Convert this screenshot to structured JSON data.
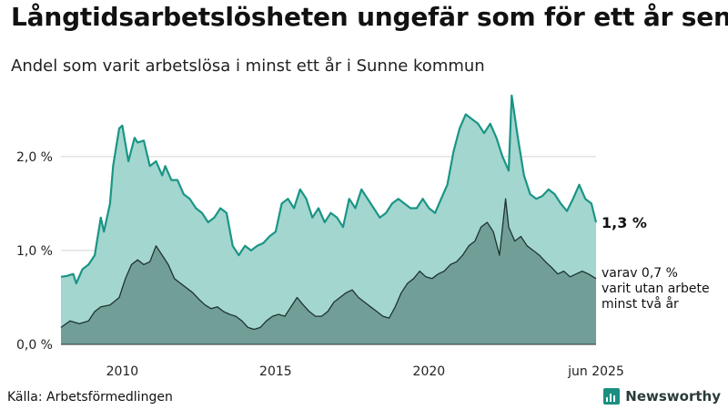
{
  "title": "Långtidsarbetslösheten ungefär som för ett år sen",
  "subtitle": "Andel som varit arbetslösa i minst ett år i Sunne kommun",
  "source": "Källa: Arbetsförmedlingen",
  "brand": "Newsworthy",
  "colors": {
    "total_fill": "#a3d6cf",
    "total_line": "#1a9585",
    "sub_fill": "#719f98",
    "sub_line": "#1f3330",
    "grid": "#d3d3d3",
    "brand_icon": "#1a8f80"
  },
  "chart_data": {
    "type": "area",
    "x_unit": "year (decimal)",
    "xlim": [
      2008.0,
      2025.45
    ],
    "ylim": [
      0,
      2.6
    ],
    "y_ticks": [
      0,
      1,
      2
    ],
    "y_tick_labels": [
      "0,0 %",
      "1,0 %",
      "2,0 %"
    ],
    "x_ticks": [
      2010,
      2015,
      2020,
      2025.45
    ],
    "x_tick_labels": [
      "2010",
      "2015",
      "2020",
      "jun 2025"
    ],
    "grid": true,
    "series": [
      {
        "key": "total",
        "end_label": "1,3 %",
        "x": [
          2008.0,
          2008.2,
          2008.4,
          2008.5,
          2008.7,
          2008.9,
          2009.1,
          2009.3,
          2009.4,
          2009.6,
          2009.7,
          2009.9,
          2010.0,
          2010.2,
          2010.4,
          2010.5,
          2010.7,
          2010.9,
          2011.1,
          2011.3,
          2011.4,
          2011.6,
          2011.8,
          2012.0,
          2012.2,
          2012.4,
          2012.6,
          2012.8,
          2013.0,
          2013.2,
          2013.4,
          2013.6,
          2013.8,
          2014.0,
          2014.2,
          2014.4,
          2014.6,
          2014.8,
          2015.0,
          2015.2,
          2015.4,
          2015.6,
          2015.8,
          2016.0,
          2016.2,
          2016.4,
          2016.6,
          2016.8,
          2017.0,
          2017.2,
          2017.4,
          2017.6,
          2017.8,
          2018.0,
          2018.2,
          2018.4,
          2018.6,
          2018.8,
          2019.0,
          2019.2,
          2019.4,
          2019.6,
          2019.8,
          2020.0,
          2020.2,
          2020.4,
          2020.6,
          2020.8,
          2021.0,
          2021.2,
          2021.4,
          2021.6,
          2021.8,
          2022.0,
          2022.2,
          2022.4,
          2022.6,
          2022.7,
          2022.9,
          2023.1,
          2023.3,
          2023.5,
          2023.7,
          2023.9,
          2024.1,
          2024.3,
          2024.5,
          2024.7,
          2024.9,
          2025.1,
          2025.3,
          2025.45
        ],
        "values": [
          0.72,
          0.73,
          0.75,
          0.65,
          0.8,
          0.85,
          0.95,
          1.35,
          1.2,
          1.5,
          1.9,
          2.3,
          2.33,
          1.95,
          2.2,
          2.15,
          2.17,
          1.9,
          1.95,
          1.8,
          1.9,
          1.75,
          1.75,
          1.6,
          1.55,
          1.45,
          1.4,
          1.3,
          1.35,
          1.45,
          1.4,
          1.05,
          0.95,
          1.05,
          1.0,
          1.05,
          1.08,
          1.15,
          1.2,
          1.5,
          1.55,
          1.45,
          1.65,
          1.55,
          1.35,
          1.45,
          1.3,
          1.4,
          1.35,
          1.25,
          1.55,
          1.45,
          1.65,
          1.55,
          1.45,
          1.35,
          1.4,
          1.5,
          1.55,
          1.5,
          1.45,
          1.45,
          1.55,
          1.45,
          1.4,
          1.55,
          1.7,
          2.05,
          2.3,
          2.45,
          2.4,
          2.35,
          2.25,
          2.35,
          2.2,
          2.0,
          1.85,
          2.65,
          2.2,
          1.8,
          1.6,
          1.55,
          1.58,
          1.65,
          1.6,
          1.5,
          1.42,
          1.55,
          1.7,
          1.55,
          1.5,
          1.3
        ]
      },
      {
        "key": "two_years",
        "end_label": "varav 0,7 % varit utan arbete minst två år",
        "end_label_lines": [
          "varav 0,7 %",
          "varit utan arbete",
          "minst två år"
        ],
        "x": [
          2008.0,
          2008.3,
          2008.6,
          2008.9,
          2009.1,
          2009.3,
          2009.6,
          2009.9,
          2010.1,
          2010.3,
          2010.5,
          2010.7,
          2010.9,
          2011.1,
          2011.3,
          2011.5,
          2011.7,
          2011.9,
          2012.1,
          2012.3,
          2012.5,
          2012.7,
          2012.9,
          2013.1,
          2013.3,
          2013.5,
          2013.7,
          2013.9,
          2014.1,
          2014.3,
          2014.5,
          2014.7,
          2014.9,
          2015.1,
          2015.3,
          2015.5,
          2015.7,
          2015.9,
          2016.1,
          2016.3,
          2016.5,
          2016.7,
          2016.9,
          2017.1,
          2017.3,
          2017.5,
          2017.7,
          2017.9,
          2018.1,
          2018.3,
          2018.5,
          2018.7,
          2018.9,
          2019.1,
          2019.3,
          2019.5,
          2019.7,
          2019.9,
          2020.1,
          2020.3,
          2020.5,
          2020.7,
          2020.9,
          2021.1,
          2021.3,
          2021.5,
          2021.7,
          2021.9,
          2022.1,
          2022.3,
          2022.5,
          2022.6,
          2022.8,
          2023.0,
          2023.2,
          2023.4,
          2023.6,
          2023.8,
          2024.0,
          2024.2,
          2024.4,
          2024.6,
          2024.8,
          2025.0,
          2025.2,
          2025.45
        ],
        "values": [
          0.18,
          0.25,
          0.22,
          0.25,
          0.35,
          0.4,
          0.42,
          0.5,
          0.7,
          0.85,
          0.9,
          0.85,
          0.88,
          1.05,
          0.95,
          0.85,
          0.7,
          0.65,
          0.6,
          0.55,
          0.48,
          0.42,
          0.38,
          0.4,
          0.35,
          0.32,
          0.3,
          0.25,
          0.18,
          0.16,
          0.18,
          0.25,
          0.3,
          0.32,
          0.3,
          0.4,
          0.5,
          0.42,
          0.35,
          0.3,
          0.3,
          0.35,
          0.45,
          0.5,
          0.55,
          0.58,
          0.5,
          0.45,
          0.4,
          0.35,
          0.3,
          0.28,
          0.4,
          0.55,
          0.65,
          0.7,
          0.78,
          0.72,
          0.7,
          0.75,
          0.78,
          0.85,
          0.88,
          0.95,
          1.05,
          1.1,
          1.25,
          1.3,
          1.2,
          0.95,
          1.55,
          1.25,
          1.1,
          1.15,
          1.05,
          1.0,
          0.95,
          0.88,
          0.82,
          0.75,
          0.78,
          0.72,
          0.75,
          0.78,
          0.75,
          0.7
        ]
      }
    ]
  }
}
